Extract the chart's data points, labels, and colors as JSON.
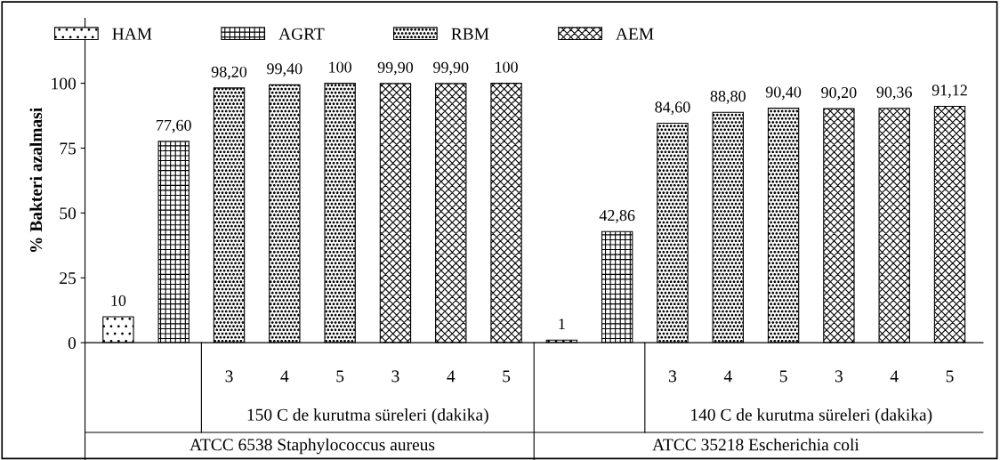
{
  "chart_data": {
    "type": "bar",
    "ylabel": "% Bakteri azalmasi",
    "categories": [
      null,
      null,
      "3",
      "4",
      "5",
      "3",
      "4",
      "5",
      null,
      null,
      "3",
      "4",
      "5",
      "3",
      "4",
      "5"
    ],
    "series": [
      {
        "name": "HAM",
        "color": "#000000",
        "values": [
          10,
          null,
          null,
          null,
          null,
          null,
          null,
          null,
          1,
          null,
          null,
          null,
          null,
          null,
          null,
          null
        ],
        "value_labels": [
          "10",
          null,
          null,
          null,
          null,
          null,
          null,
          null,
          "1",
          null,
          null,
          null,
          null,
          null,
          null,
          null
        ]
      },
      {
        "name": "AGRT",
        "color": "#000000",
        "values": [
          null,
          77.6,
          null,
          null,
          null,
          null,
          null,
          null,
          null,
          42.86,
          null,
          null,
          null,
          null,
          null,
          null
        ],
        "value_labels": [
          null,
          "77,60",
          null,
          null,
          null,
          null,
          null,
          null,
          null,
          "42,86",
          null,
          null,
          null,
          null,
          null,
          null
        ]
      },
      {
        "name": "RBM",
        "color": "#000000",
        "values": [
          null,
          null,
          98.2,
          99.4,
          100,
          null,
          null,
          null,
          null,
          null,
          84.6,
          88.8,
          90.4,
          null,
          null,
          null
        ],
        "value_labels": [
          null,
          null,
          "98,20",
          "99,40",
          "100",
          null,
          null,
          null,
          null,
          null,
          "84,60",
          "88,80",
          "90,40",
          null,
          null,
          null
        ]
      },
      {
        "name": "AEM",
        "color": "#000000",
        "values": [
          null,
          null,
          null,
          null,
          null,
          99.9,
          99.9,
          100,
          null,
          null,
          null,
          null,
          null,
          90.2,
          90.36,
          91.12
        ],
        "value_labels": [
          null,
          null,
          null,
          null,
          null,
          "99,90",
          "99,90",
          "100",
          null,
          null,
          null,
          null,
          null,
          "90,20",
          "90,36",
          "91,12"
        ]
      }
    ],
    "ylim": [
      0,
      125
    ],
    "yticks": [
      0,
      25,
      50,
      75,
      100
    ],
    "annotations": [
      "150 C de kurutma süreleri (dakika)",
      "140 C de kurutma süreleri (dakika)",
      "ATCC 6538 Staphylococcus aureus",
      "ATCC 35218 Escherichia coli"
    ],
    "legend": "top",
    "grid": false
  }
}
